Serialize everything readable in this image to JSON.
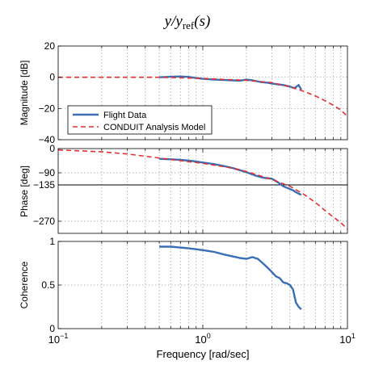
{
  "figure": {
    "title_main": "y/y",
    "title_sub": "ref",
    "title_arg": "(s)"
  },
  "chart_data": [
    {
      "type": "line",
      "id": "magnitude",
      "ylabel": "Magnitude [dB]",
      "xscale": "log",
      "xlim": [
        0.1,
        10
      ],
      "ylim": [
        -40,
        20
      ],
      "yticks": [
        -40,
        -20,
        0,
        20
      ],
      "ytick_labels": [
        "−40",
        "−20",
        "0",
        "20"
      ],
      "grid": true,
      "legend": "lower-left",
      "series": [
        {
          "name": "Flight Data",
          "color": "#3a6fb5",
          "style": "solid",
          "x": [
            0.5,
            0.6,
            0.7,
            0.8,
            0.9,
            1.0,
            1.2,
            1.4,
            1.6,
            1.8,
            2.0,
            2.2,
            2.5,
            2.8,
            3.0,
            3.3,
            3.6,
            4.0,
            4.3,
            4.6,
            4.8
          ],
          "y": [
            0,
            0.3,
            0.5,
            0.2,
            -0.5,
            -1,
            -1.5,
            -1.8,
            -2,
            -2.2,
            -1.5,
            -2,
            -3,
            -3.5,
            -4,
            -4.5,
            -5,
            -6,
            -7,
            -5,
            -8
          ]
        },
        {
          "name": "CONDUIT Analysis Model",
          "color": "#e03030",
          "style": "dashed",
          "x": [
            0.1,
            0.2,
            0.3,
            0.5,
            0.7,
            1.0,
            1.5,
            2.0,
            3.0,
            4.0,
            5.0,
            6.0,
            7.0,
            8.0,
            9.0,
            10.0
          ],
          "y": [
            0,
            0,
            0,
            0,
            -0.3,
            -0.8,
            -1.5,
            -2,
            -3.5,
            -6,
            -9,
            -12,
            -15,
            -18,
            -21,
            -25
          ]
        }
      ]
    },
    {
      "type": "line",
      "id": "phase",
      "ylabel": "Phase [deg]",
      "xscale": "log",
      "xlim": [
        0.1,
        10
      ],
      "ylim": [
        -315,
        0
      ],
      "yticks": [
        0,
        -90,
        -135,
        -270
      ],
      "ytick_labels": [
        "0",
        "−90",
        "−135",
        "−270"
      ],
      "hline": -135,
      "grid": true,
      "series": [
        {
          "name": "Flight Data",
          "x": [
            0.5,
            0.6,
            0.7,
            0.8,
            0.9,
            1.0,
            1.2,
            1.4,
            1.6,
            1.8,
            2.0,
            2.3,
            2.6,
            3.0,
            3.3,
            3.6,
            3.9,
            4.2,
            4.5,
            4.8
          ],
          "y": [
            -38,
            -40,
            -42,
            -45,
            -48,
            -52,
            -58,
            -65,
            -72,
            -80,
            -88,
            -100,
            -108,
            -112,
            -125,
            -140,
            -148,
            -155,
            -165,
            -172
          ]
        },
        {
          "name": "CONDUIT Analysis Model",
          "x": [
            0.1,
            0.2,
            0.3,
            0.5,
            0.7,
            1.0,
            1.5,
            2.0,
            3.0,
            4.0,
            5.0,
            6.0,
            7.0,
            8.0,
            9.0,
            10.0
          ],
          "y": [
            -5,
            -12,
            -20,
            -35,
            -45,
            -55,
            -70,
            -85,
            -115,
            -140,
            -170,
            -200,
            -230,
            -255,
            -275,
            -300
          ]
        }
      ]
    },
    {
      "type": "line",
      "id": "coherence",
      "ylabel": "Coherence",
      "xlabel": "Frequency [rad/sec]",
      "xscale": "log",
      "xlim": [
        0.1,
        10
      ],
      "ylim": [
        0,
        1
      ],
      "yticks": [
        0,
        0.5,
        1
      ],
      "ytick_labels": [
        "0",
        "0.5",
        "1"
      ],
      "xtick_labels": [
        {
          "base": "10",
          "exp": "−1"
        },
        {
          "base": "10",
          "exp": "0"
        },
        {
          "base": "10",
          "exp": "1"
        }
      ],
      "grid": true,
      "series": [
        {
          "name": "Flight Data",
          "x": [
            0.5,
            0.6,
            0.7,
            0.8,
            0.9,
            1.0,
            1.2,
            1.4,
            1.6,
            1.8,
            2.0,
            2.2,
            2.4,
            2.6,
            2.8,
            3.0,
            3.2,
            3.4,
            3.6,
            3.8,
            4.0,
            4.2,
            4.4,
            4.6,
            4.8
          ],
          "y": [
            0.94,
            0.94,
            0.93,
            0.92,
            0.91,
            0.9,
            0.88,
            0.85,
            0.83,
            0.81,
            0.8,
            0.82,
            0.8,
            0.75,
            0.7,
            0.65,
            0.6,
            0.58,
            0.53,
            0.52,
            0.5,
            0.45,
            0.3,
            0.25,
            0.22
          ]
        }
      ]
    }
  ]
}
